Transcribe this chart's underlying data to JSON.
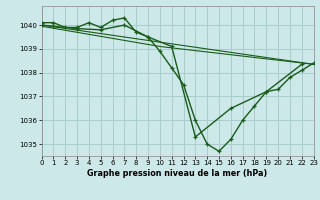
{
  "bg_color": "#cce8e8",
  "grid_color": "#aacccc",
  "line_color": "#1a5c1a",
  "xlim": [
    0,
    23
  ],
  "ylim": [
    1034.5,
    1040.8
  ],
  "yticks": [
    1035,
    1036,
    1037,
    1038,
    1039,
    1040
  ],
  "xticks": [
    0,
    1,
    2,
    3,
    4,
    5,
    6,
    7,
    8,
    9,
    10,
    11,
    12,
    13,
    14,
    15,
    16,
    17,
    18,
    19,
    20,
    21,
    22,
    23
  ],
  "xlabel": "Graphe pression niveau de la mer (hPa)",
  "series": [
    {
      "x": [
        0,
        1,
        2,
        3,
        4,
        5,
        6,
        7,
        8,
        9,
        10,
        11,
        12,
        13,
        14,
        15,
        16,
        17,
        18,
        19,
        20,
        21,
        22,
        23
      ],
      "y": [
        1040.1,
        1040.1,
        1039.9,
        1039.9,
        1040.1,
        1039.9,
        1040.2,
        1040.3,
        1039.7,
        1039.5,
        1038.9,
        1038.2,
        1037.5,
        1036.0,
        1035.0,
        1034.7,
        1035.2,
        1036.0,
        1036.6,
        1037.2,
        1037.3,
        1037.8,
        1038.1,
        1038.4
      ],
      "marker": true
    },
    {
      "x": [
        0,
        1,
        3,
        5,
        7,
        9,
        11,
        13,
        16,
        19,
        22
      ],
      "y": [
        1040.0,
        1039.95,
        1039.85,
        1039.8,
        1040.0,
        1039.5,
        1039.1,
        1035.3,
        1036.5,
        1037.2,
        1038.35
      ],
      "marker": true
    },
    {
      "x": [
        0,
        23
      ],
      "y": [
        1040.0,
        1038.35
      ],
      "marker": false
    },
    {
      "x": [
        0,
        10,
        23
      ],
      "y": [
        1039.95,
        1039.1,
        1038.35
      ],
      "marker": false
    }
  ]
}
